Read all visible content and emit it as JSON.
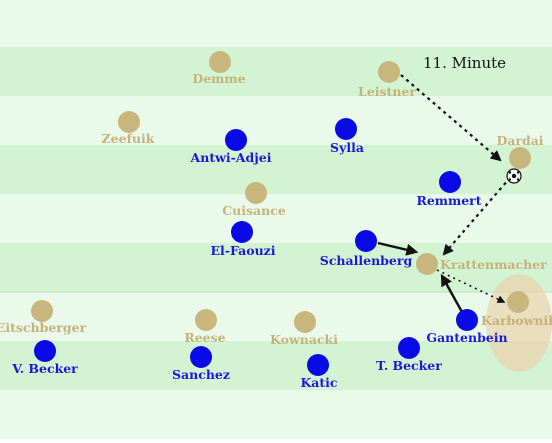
{
  "caption": "11. Minute",
  "colors": {
    "stripe_light": "#eafaea",
    "stripe_dark": "#d3f4d3",
    "gold_player": "#c9b67c",
    "gold_text": "#c4b27a",
    "blue_player": "#0a0ae6",
    "blue_text": "#1a1ad6",
    "arrow": "#111111",
    "highlight": "#e9d4b0"
  },
  "players": {
    "demme": "Demme",
    "leistner": "Leistner",
    "zeefuik": "Zeefuik",
    "antwi_adjei": "Antwi-Adjei",
    "sylla": "Sylla",
    "dardai": "Dardai",
    "cuisance": "Cuisance",
    "remmert": "Remmert",
    "el_faouzi": "El-Faouzi",
    "schallenberg": "Schallenberg",
    "krattenmacher": "Krattenmacher",
    "eitschberger": "Eitschberger",
    "reese": "Reese",
    "kownacki": "Kownacki",
    "karbownik": "Karbownik",
    "gantenbein": "Gantenbein",
    "v_becker": "V. Becker",
    "sanchez": "Sanchez",
    "katic": "Katic",
    "t_becker": "T. Becker"
  }
}
